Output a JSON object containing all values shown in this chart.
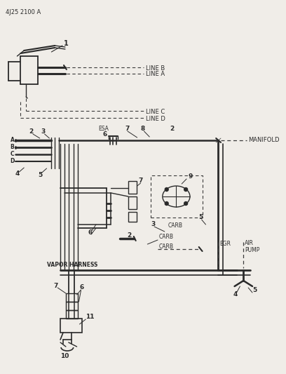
{
  "title": "4J25 2100 A",
  "bg_color": "#f0ede8",
  "line_color": "#2a2a2a",
  "dash_color": "#3a3a3a",
  "fig_width": 4.08,
  "fig_height": 5.33,
  "dpi": 100,
  "labels": {
    "line_b": "LINE B",
    "line_a": "LINE A",
    "line_c": "LINE C",
    "line_d": "LINE D",
    "esa": "ESA",
    "manifold": "MANIFOLD",
    "carb": "CARB",
    "egr": "EGR",
    "air_pump": "AIR\nPUMP",
    "vapor_harness": "VAPOR HARNESS"
  }
}
